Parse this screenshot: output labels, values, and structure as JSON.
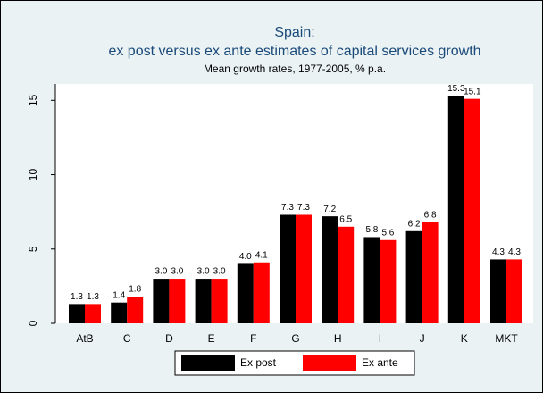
{
  "chart_data": {
    "type": "bar",
    "title": "Spain:",
    "subtitle": "ex post versus ex ante estimates of capital services growth",
    "note": "Mean growth rates, 1977-2005, % p.a.",
    "categories": [
      "AtB",
      "C",
      "D",
      "E",
      "F",
      "G",
      "H",
      "I",
      "J",
      "K",
      "MKT"
    ],
    "series": [
      {
        "name": "Ex post",
        "color": "#000000",
        "values": [
          1.3,
          1.4,
          3.0,
          3.0,
          4.0,
          7.3,
          7.2,
          5.8,
          6.2,
          15.3,
          4.3
        ],
        "value_labels": [
          "1.3",
          "1.4",
          "3.0",
          "3.0",
          "4.0",
          "7.3",
          "7.2",
          "5.8",
          "6.2",
          "15.3",
          "4.3"
        ]
      },
      {
        "name": "Ex ante",
        "color": "#ff0000",
        "values": [
          1.3,
          1.8,
          3.0,
          3.0,
          4.1,
          7.3,
          6.5,
          5.6,
          6.8,
          15.1,
          4.3
        ],
        "value_labels": [
          "1.3",
          "1.8",
          "3.0",
          "3.0",
          "4.1",
          "7.3",
          "6.5",
          "5.6",
          "6.8",
          "15.1",
          "4.3"
        ]
      }
    ],
    "ylim": [
      0,
      16.1
    ],
    "yticks": [
      0,
      5,
      10,
      15
    ],
    "grid": false,
    "legend": "bottom"
  }
}
